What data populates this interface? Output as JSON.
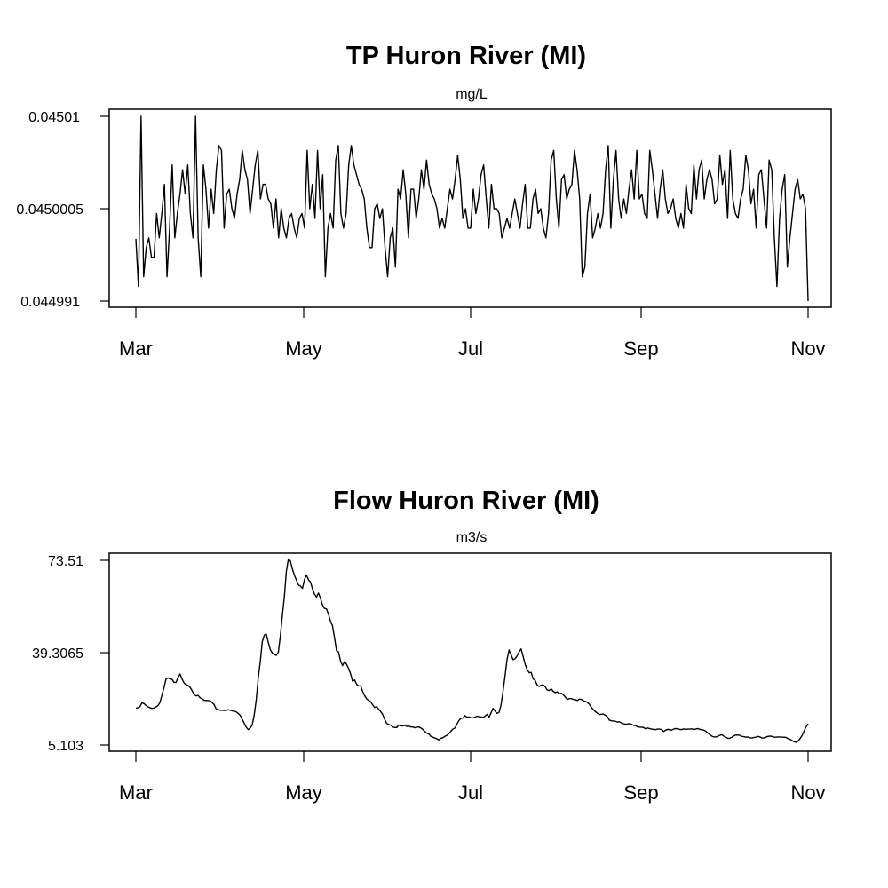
{
  "chart_data": [
    {
      "type": "line",
      "title": "TP Huron River (MI)",
      "subtitle": "mg/L",
      "yticks": [
        "0.04501",
        "0.0450005",
        "0.044991"
      ],
      "ylim": [
        0.044991,
        0.04501
      ],
      "xticks": [
        "Mar",
        "May",
        "Jul",
        "Sep",
        "Nov"
      ],
      "x_start": "2009-03-01",
      "y_step": 2.5e-06,
      "series": [
        {
          "values": [
            0.0449974,
            0.0449925,
            0.04501,
            0.0449935,
            0.0449965,
            0.0449975,
            0.0449955,
            0.0449955,
            0.045,
            0.0449975,
            0.045,
            0.045003,
            0.0449935,
            0.0449985,
            0.045005,
            0.0449975,
            0.045,
            0.045002,
            0.0450045,
            0.045002,
            0.045005,
            0.045,
            0.0449975,
            0.04501,
            0.0449975,
            0.0449935,
            0.045005,
            0.0450025,
            0.0449985,
            0.0450025,
            0.045,
            0.0450045,
            0.045007,
            0.0450065,
            0.0449985,
            0.045002,
            0.0450025,
            0.0450005,
            0.0449995,
            0.045002,
            0.0450035,
            0.0450065,
            0.0450045,
            0.0450035,
            0.045,
            0.0450025,
            0.045005,
            0.0450065,
            0.0450015,
            0.045003,
            0.045003,
            0.0450015,
            0.045001,
            0.0449985,
            0.0450015,
            0.0449975,
            0.0450005,
            0.0449985,
            0.0449975,
            0.0449995,
            0.045,
            0.0449985,
            0.0449975,
            0.0449995,
            0.045,
            0.0449985,
            0.0450065,
            0.0450005,
            0.045003,
            0.0449995,
            0.0450065,
            0.0450005,
            0.045004,
            0.0449935,
            0.0449985,
            0.045,
            0.0449985,
            0.0450055,
            0.045007,
            0.045,
            0.0449985,
            0.045,
            0.045005,
            0.045007,
            0.045005,
            0.045004,
            0.045003,
            0.0450025,
            0.0450015,
            0.0449985,
            0.0449965,
            0.0449965,
            0.0450005,
            0.045001,
            0.0449995,
            0.0450005,
            0.0449965,
            0.0449935,
            0.0449975,
            0.0449985,
            0.0449945,
            0.0450025,
            0.0450015,
            0.0450045,
            0.045002,
            0.0449975,
            0.0450025,
            0.0450025,
            0.0449995,
            0.0450015,
            0.0450045,
            0.0450025,
            0.0450055,
            0.045003,
            0.045002,
            0.0450015,
            0.0450005,
            0.0449985,
            0.0449995,
            0.0449985,
            0.0450005,
            0.0450025,
            0.0450015,
            0.0450035,
            0.045006,
            0.0450035,
            0.0449995,
            0.0450005,
            0.0449985,
            0.0449985,
            0.0450025,
            0.045,
            0.0450015,
            0.045004,
            0.045005,
            0.0450015,
            0.0449985,
            0.045003,
            0.0450005,
            0.0450005,
            0.045,
            0.0449975,
            0.0449985,
            0.0449995,
            0.0449985,
            0.045,
            0.0450015,
            0.045,
            0.0449985,
            0.045001,
            0.045003,
            0.0449985,
            0.0449985,
            0.0450015,
            0.0450025,
            0.045,
            0.0450005,
            0.0449985,
            0.0449975,
            0.045,
            0.0450055,
            0.0450065,
            0.0450015,
            0.0449985,
            0.0450035,
            0.045004,
            0.0450015,
            0.0450025,
            0.045003,
            0.0450065,
            0.0450045,
            0.0450015,
            0.0449935,
            0.0449945,
            0.045,
            0.045002,
            0.0449975,
            0.0449985,
            0.045,
            0.0449985,
            0.045,
            0.0450045,
            0.045007,
            0.0449985,
            0.0450035,
            0.0450065,
            0.0450015,
            0.0449995,
            0.0450015,
            0.045,
            0.0450025,
            0.0450045,
            0.0450015,
            0.0450065,
            0.0450015,
            0.045002,
            0.045,
            0.0449995,
            0.0450065,
            0.0450045,
            0.045002,
            0.0449995,
            0.0450025,
            0.0450045,
            0.0450015,
            0.045,
            0.0450005,
            0.0450015,
            0.0449995,
            0.0449985,
            0.045,
            0.0449985,
            0.045003,
            0.0450005,
            0.045,
            0.045005,
            0.0450015,
            0.0450045,
            0.0450055,
            0.0450015,
            0.0450035,
            0.0450045,
            0.0450035,
            0.045001,
            0.0450015,
            0.045006,
            0.045003,
            0.0450045,
            0.0449995,
            0.0450065,
            0.0450015,
            0.045,
            0.0449995,
            0.0450015,
            0.0450025,
            0.045006,
            0.0450045,
            0.045001,
            0.0450025,
            0.0449985,
            0.045004,
            0.0450045,
            0.0450015,
            0.0449985,
            0.0450055,
            0.0450045,
            0.0449975,
            0.0449925,
            0.0449995,
            0.0450025,
            0.045004,
            0.0449945,
            0.0449975,
            0.045,
            0.0450025,
            0.0450035,
            0.0450015,
            0.045002,
            0.0450005,
            0.044991
          ]
        }
      ]
    },
    {
      "type": "line",
      "title": "Flow Huron River (MI)",
      "subtitle": "m3/s",
      "yticks": [
        "73.51",
        "39.3065",
        "5.103"
      ],
      "ylim": [
        5.103,
        73.51
      ],
      "xticks": [
        "Mar",
        "May",
        "Jul",
        "Sep",
        "Nov"
      ],
      "x_start": "2009-03-01",
      "series": [
        {
          "values": [
            18.8,
            18.9,
            19.3,
            20.7,
            20.5,
            19.8,
            19.3,
            18.9,
            18.7,
            18.8,
            19.2,
            19.7,
            20.9,
            23.6,
            26.3,
            29.5,
            30.0,
            29.6,
            29.5,
            28.3,
            28.3,
            30.1,
            31.4,
            29.6,
            28.1,
            27.5,
            27.2,
            26.5,
            25.3,
            23.8,
            23.3,
            23.5,
            22.6,
            22.2,
            21.7,
            21.6,
            21.6,
            21.5,
            20.8,
            20.1,
            18.5,
            18.2,
            18.0,
            18.0,
            17.9,
            17.9,
            18.2,
            18.0,
            17.8,
            17.6,
            17.4,
            16.8,
            16.1,
            14.7,
            13.2,
            11.7,
            10.8,
            11.4,
            12.6,
            16.3,
            22.0,
            30.0,
            36.0,
            43.4,
            45.8,
            46.2,
            43.1,
            40.4,
            39.2,
            38.6,
            38.3,
            39.5,
            45.5,
            53.0,
            60.0,
            69.5,
            74.0,
            73.3,
            70.3,
            68.0,
            66.2,
            64.4,
            64.0,
            63.1,
            66.3,
            68.1,
            66.3,
            65.5,
            63.0,
            61.0,
            59.9,
            61.4,
            59.5,
            57.0,
            55.7,
            55.5,
            53.5,
            50.9,
            49.2,
            44.8,
            40.0,
            39.6,
            36.2,
            34.5,
            36.0,
            35.0,
            33.5,
            31.5,
            28.7,
            29.2,
            27.6,
            27.0,
            27.0,
            25.0,
            23.4,
            22.2,
            21.6,
            21.2,
            20.0,
            19.0,
            19.3,
            18.4,
            17.5,
            16.4,
            14.6,
            13.1,
            12.7,
            12.5,
            11.8,
            11.6,
            11.6,
            12.5,
            12.2,
            12.2,
            12.4,
            12.0,
            12.1,
            11.8,
            11.8,
            11.5,
            11.7,
            11.8,
            11.4,
            10.9,
            10.1,
            9.5,
            9.2,
            8.3,
            8.0,
            7.7,
            7.4,
            7.0,
            7.6,
            7.8,
            8.3,
            8.7,
            9.3,
            10.2,
            11.0,
            11.4,
            12.8,
            14.2,
            15.0,
            15.1,
            16.0,
            15.4,
            15.5,
            15.2,
            15.2,
            15.4,
            15.8,
            15.6,
            15.5,
            15.4,
            15.8,
            16.5,
            15.4,
            17.0,
            18.7,
            17.7,
            16.8,
            17.2,
            20.0,
            25.1,
            30.8,
            36.8,
            40.3,
            38.5,
            36.7,
            37.1,
            38.1,
            39.6,
            40.7,
            37.9,
            35.0,
            33.0,
            31.9,
            32.0,
            29.6,
            29.0,
            27.3,
            26.8,
            27.3,
            27.4,
            26.7,
            25.5,
            25.3,
            25.9,
            25.0,
            24.5,
            24.8,
            24.1,
            24.3,
            23.7,
            22.9,
            22.0,
            22.3,
            22.3,
            22.0,
            21.9,
            21.6,
            22.1,
            22.0,
            21.5,
            21.3,
            20.9,
            20.2,
            19.1,
            18.2,
            17.5,
            16.9,
            16.4,
            16.5,
            16.6,
            16.1,
            15.6,
            14.3,
            14.1,
            14.0,
            13.9,
            13.6,
            13.7,
            13.3,
            13.0,
            12.8,
            12.9,
            13.0,
            12.8,
            12.4,
            12.3,
            11.9,
            11.7,
            11.7,
            11.6,
            11.1,
            11.4,
            11.2,
            11.0,
            10.9,
            10.8,
            11.0,
            11.0,
            10.8,
            10.1,
            10.6,
            10.9,
            10.8,
            10.6,
            11.0,
            11.2,
            11.1,
            10.9,
            10.8,
            11.1,
            10.9,
            11.0,
            11.0,
            11.1,
            10.9,
            11.0,
            11.2,
            10.9,
            10.8,
            10.6,
            10.2,
            9.6,
            9.0,
            8.4,
            8.1,
            8.1,
            8.3,
            8.7,
            8.9,
            8.4,
            8.0,
            7.6,
            7.6,
            8.0,
            8.5,
            8.8,
            8.8,
            8.7,
            8.3,
            8.2,
            8.0,
            8.1,
            7.8,
            7.7,
            7.9,
            8.0,
            8.3,
            8.1,
            7.7,
            7.7,
            8.0,
            8.3,
            8.4,
            8.3,
            8.0,
            8.0,
            8.1,
            8.1,
            8.0,
            8.0,
            7.9,
            7.5,
            7.2,
            6.8,
            6.3,
            6.1,
            6.5,
            7.5,
            8.6,
            10.2,
            11.8,
            13.0
          ]
        }
      ]
    }
  ]
}
